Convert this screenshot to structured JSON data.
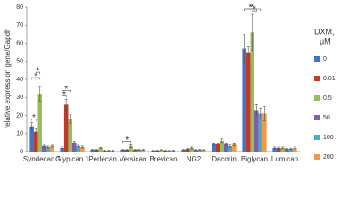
{
  "chart_data": {
    "type": "bar",
    "y_label": "relative expression gene/Gapdh",
    "legend_title": [
      "DXM,",
      "μM"
    ],
    "categories": [
      "Syndecan 1",
      "Glypican 1",
      "Perlecan",
      "Versican",
      "Brevican",
      "NG2",
      "Decorin",
      "Biglycan",
      "Lumican"
    ],
    "series": [
      {
        "name": "0",
        "color": "#4472c4",
        "values": [
          14,
          2,
          1,
          1,
          0.5,
          1,
          4,
          57,
          2
        ],
        "errors": [
          2,
          0.5,
          0.3,
          0.3,
          0.2,
          0.3,
          0.8,
          8,
          0.5
        ]
      },
      {
        "name": "0.01",
        "color": "#c0392b",
        "values": [
          11,
          26,
          1,
          1,
          0.5,
          1.5,
          4,
          55,
          2
        ],
        "errors": [
          1.5,
          3,
          0.3,
          0.3,
          0.2,
          0.4,
          0.8,
          3,
          0.5
        ]
      },
      {
        "name": "0.5",
        "color": "#9bbb59",
        "values": [
          32,
          18,
          2,
          3,
          1,
          2,
          6,
          66,
          2
        ],
        "errors": [
          4,
          2.5,
          0.4,
          0.8,
          0.3,
          0.5,
          1,
          10,
          0.5
        ]
      },
      {
        "name": "50",
        "color": "#7f5fa8",
        "values": [
          3,
          5,
          0.5,
          1,
          0.5,
          1,
          4,
          23,
          1.5
        ],
        "errors": [
          0.5,
          0.8,
          0.2,
          0.3,
          0.2,
          0.3,
          0.8,
          3,
          0.4
        ]
      },
      {
        "name": "100",
        "color": "#4bacc6",
        "values": [
          2.5,
          3,
          0.5,
          1,
          0.5,
          1,
          3,
          21,
          1.5
        ],
        "errors": [
          0.5,
          0.5,
          0.2,
          0.3,
          0.2,
          0.3,
          0.7,
          3,
          0.4
        ]
      },
      {
        "name": "200",
        "color": "#f79646",
        "values": [
          3,
          2.5,
          0.5,
          1,
          0.5,
          1,
          4,
          21,
          2
        ],
        "errors": [
          0.5,
          0.5,
          0.2,
          0.3,
          0.2,
          0.3,
          0.8,
          4,
          0.5
        ]
      }
    ],
    "significance": [
      {
        "category": "Syndecan 1",
        "series": [
          "0",
          "0.01"
        ],
        "label": "*"
      },
      {
        "category": "Syndecan 1",
        "series": [
          "0",
          "0.5"
        ],
        "label": "*"
      },
      {
        "category": "Syndecan 1",
        "series": [
          "0.01",
          "0.5"
        ],
        "label": "*"
      },
      {
        "category": "Glypican 1",
        "series": [
          "0",
          "0.01"
        ],
        "label": "*"
      },
      {
        "category": "Glypican 1",
        "series": [
          "0",
          "0.5"
        ],
        "label": "*"
      },
      {
        "category": "Versican",
        "series": [
          "0",
          "0.5"
        ],
        "label": "*"
      },
      {
        "category": "Biglycan",
        "series": [
          "0.5",
          "50"
        ],
        "label": "*"
      },
      {
        "category": "Biglycan",
        "series": [
          "0",
          "50"
        ],
        "label": "*"
      },
      {
        "category": "Biglycan",
        "series": [
          "0",
          "100"
        ],
        "label": "*"
      }
    ],
    "ylim": [
      0,
      80
    ],
    "yticks": [
      0,
      10,
      20,
      30,
      40,
      50,
      60,
      70,
      80
    ],
    "grid": false
  }
}
